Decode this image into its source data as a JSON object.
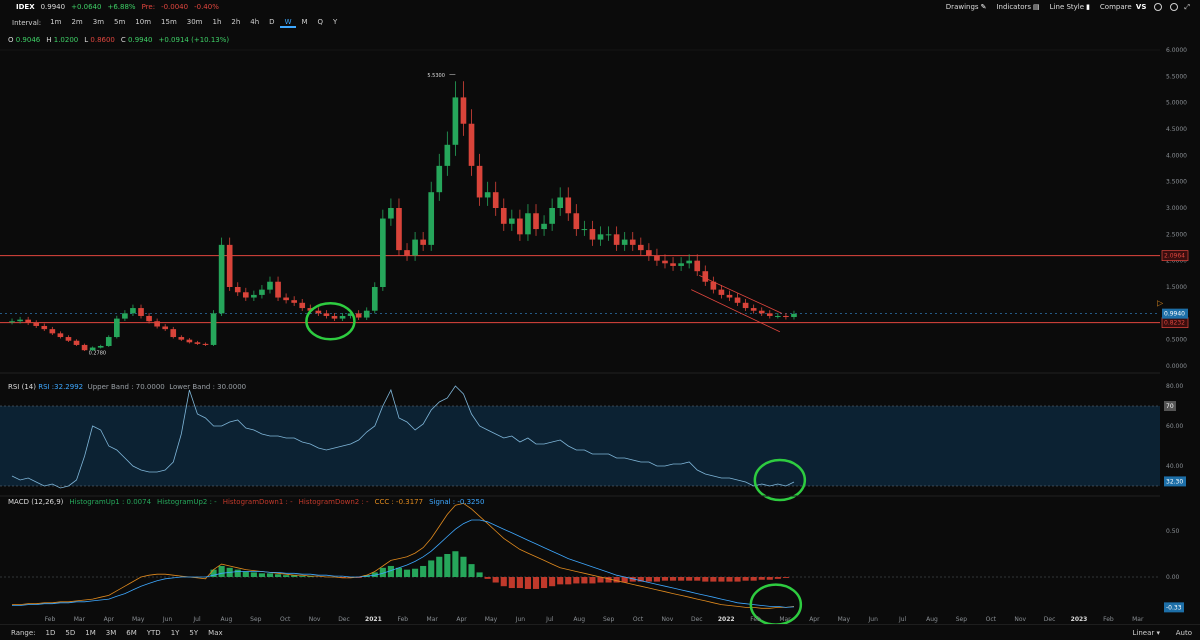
{
  "symbol": "IDEX",
  "price": "0.9940",
  "change": "+0.0640",
  "change_pct": "+6.88%",
  "pre_label": "Pre:",
  "pre_change": "-0.0040",
  "pre_pct": "-0.40%",
  "toolbar": {
    "drawings": "Drawings",
    "indicators": "Indicators",
    "line_style": "Line Style",
    "compare": "Compare",
    "compare_icon": "VS"
  },
  "interval_label": "Interval:",
  "intervals": [
    "1m",
    "2m",
    "3m",
    "5m",
    "10m",
    "15m",
    "30m",
    "1h",
    "2h",
    "4h",
    "D",
    "W",
    "M",
    "Q",
    "Y"
  ],
  "selected_interval": "W",
  "ohlc": {
    "o_label": "O",
    "o": "0.9046",
    "h_label": "H",
    "h": "1.0200",
    "l_label": "L",
    "l": "0.8600",
    "c_label": "C",
    "c": "0.9940",
    "chg": "+0.0914 (+10.13%)"
  },
  "ranges": [
    "Range:",
    "1D",
    "5D",
    "1M",
    "3M",
    "6M",
    "YTD",
    "1Y",
    "5Y",
    "Max"
  ],
  "scale_mode": "Linear",
  "auto_label": "Auto",
  "chart_data": [
    {
      "type": "candlestick",
      "y_ticks": [
        "6.0000",
        "5.5000",
        "5.0000",
        "4.5000",
        "4.0000",
        "3.5000",
        "3.0000",
        "2.5000",
        "2.0000",
        "1.5000",
        "1.0000",
        "0.5000",
        "0.0000"
      ],
      "annotations": {
        "high": "5.5300",
        "low": "0.2780"
      },
      "price_levels": [
        {
          "value": "2.0964",
          "color": "#e0463e"
        },
        {
          "value": "0.8232",
          "color": "#e0463e"
        }
      ],
      "last_price": "0.9940",
      "x_ticks": [
        "Feb",
        "Mar",
        "Apr",
        "May",
        "Jun",
        "Jul",
        "Aug",
        "Sep",
        "Oct",
        "Nov",
        "Dec",
        "2021",
        "Feb",
        "Mar",
        "Apr",
        "May",
        "Jun",
        "Jul",
        "Aug",
        "Sep",
        "Oct",
        "Nov",
        "Dec",
        "2022",
        "Feb",
        "Mar",
        "Apr",
        "May",
        "Jun",
        "Jul",
        "Aug",
        "Sep",
        "Oct",
        "Nov",
        "Dec",
        "2023",
        "Feb",
        "Mar"
      ],
      "closes": [
        0.85,
        0.88,
        0.82,
        0.76,
        0.7,
        0.62,
        0.55,
        0.48,
        0.4,
        0.3,
        0.35,
        0.38,
        0.55,
        0.9,
        1.0,
        1.1,
        0.95,
        0.85,
        0.75,
        0.7,
        0.55,
        0.5,
        0.45,
        0.42,
        0.4,
        1.0,
        2.3,
        1.5,
        1.4,
        1.3,
        1.35,
        1.45,
        1.6,
        1.3,
        1.25,
        1.2,
        1.1,
        1.05,
        1.0,
        0.95,
        0.9,
        0.95,
        1.0,
        0.92,
        1.05,
        1.5,
        2.8,
        3.0,
        2.2,
        2.1,
        2.4,
        2.3,
        3.3,
        3.8,
        4.2,
        5.1,
        4.6,
        3.8,
        3.2,
        3.3,
        3.0,
        2.7,
        2.8,
        2.5,
        2.9,
        2.6,
        2.7,
        3.0,
        3.2,
        2.9,
        2.6,
        2.6,
        2.4,
        2.5,
        2.5,
        2.3,
        2.4,
        2.3,
        2.2,
        2.1,
        2.0,
        1.95,
        1.9,
        1.95,
        2.0,
        1.8,
        1.6,
        1.45,
        1.35,
        1.3,
        1.2,
        1.1,
        1.05,
        1.0,
        0.95,
        0.95,
        0.93,
        0.99
      ]
    },
    {
      "type": "line",
      "name": "RSI (14)",
      "label_prefix": "RSI : ",
      "current": "32.2992",
      "upper_label": "Upper Band : 70.0000",
      "lower_label": "Lower Band : 30.0000",
      "upper": 70,
      "lower": 30,
      "y_ticks": [
        "80.00",
        "60.00",
        "40.00"
      ],
      "badges": [
        "70",
        "32.30"
      ],
      "values": [
        35,
        33,
        34,
        32,
        30,
        31,
        29,
        30,
        33,
        45,
        60,
        58,
        50,
        48,
        44,
        40,
        38,
        37,
        37,
        38,
        42,
        56,
        78,
        66,
        64,
        60,
        60,
        62,
        63,
        59,
        58,
        56,
        55,
        55,
        54,
        54,
        52,
        51,
        49,
        48,
        49,
        50,
        51,
        53,
        57,
        60,
        70,
        78,
        64,
        62,
        58,
        61,
        68,
        72,
        74,
        80,
        76,
        66,
        60,
        58,
        56,
        54,
        55,
        52,
        54,
        51,
        51,
        52,
        53,
        50,
        48,
        48,
        46,
        46,
        46,
        44,
        44,
        43,
        42,
        42,
        40,
        40,
        41,
        41,
        42,
        38,
        36,
        35,
        34,
        34,
        33,
        32,
        30,
        31,
        30,
        31,
        30,
        32
      ]
    },
    {
      "type": "bar",
      "name": "MACD (12,26,9)",
      "legend": [
        {
          "label": "HistogramUp1 : 0.0074",
          "color": "#26a65b"
        },
        {
          "label": "HistogramUp2 : -",
          "color": "#26a65b"
        },
        {
          "label": "HistogramDown1 : -",
          "color": "#c0392b"
        },
        {
          "label": "HistogramDown2 : -",
          "color": "#c0392b"
        },
        {
          "label": "CCC : -0.3177",
          "color": "#e08a1e"
        },
        {
          "label": "Signal : -0.3250",
          "color": "#3ea8ff"
        }
      ],
      "y_ticks": [
        "0.50",
        "0.00"
      ],
      "badge": "-0.33",
      "histogram": [
        0,
        0,
        0,
        0,
        0,
        0,
        0,
        0,
        0,
        0,
        0,
        0,
        0,
        0,
        0,
        0,
        0,
        0,
        0,
        0,
        0,
        0,
        0,
        0,
        0,
        0.08,
        0.12,
        0.1,
        0.08,
        0.06,
        0.05,
        0.04,
        0.04,
        0.03,
        0.02,
        0.02,
        0.01,
        0.01,
        0,
        0,
        0,
        -0.01,
        -0.01,
        -0.01,
        0.02,
        0.05,
        0.1,
        0.12,
        0.1,
        0.08,
        0.09,
        0.12,
        0.18,
        0.22,
        0.25,
        0.28,
        0.22,
        0.14,
        0.05,
        -0.02,
        -0.06,
        -0.1,
        -0.12,
        -0.12,
        -0.13,
        -0.13,
        -0.12,
        -0.1,
        -0.08,
        -0.08,
        -0.07,
        -0.07,
        -0.07,
        -0.06,
        -0.06,
        -0.06,
        -0.06,
        -0.05,
        -0.05,
        -0.05,
        -0.05,
        -0.04,
        -0.04,
        -0.04,
        -0.04,
        -0.04,
        -0.05,
        -0.05,
        -0.05,
        -0.05,
        -0.05,
        -0.04,
        -0.04,
        -0.03,
        -0.03,
        -0.02,
        -0.01,
        0
      ],
      "macd": [
        -0.3,
        -0.3,
        -0.29,
        -0.29,
        -0.28,
        -0.28,
        -0.27,
        -0.27,
        -0.26,
        -0.25,
        -0.24,
        -0.22,
        -0.2,
        -0.15,
        -0.1,
        -0.05,
        0,
        0.02,
        0.03,
        0.03,
        0.02,
        0.01,
        0,
        -0.01,
        -0.02,
        0.08,
        0.14,
        0.12,
        0.1,
        0.08,
        0.07,
        0.06,
        0.05,
        0.04,
        0.03,
        0.02,
        0.02,
        0.01,
        0.01,
        0,
        0,
        -0.01,
        -0.01,
        0,
        0.02,
        0.06,
        0.12,
        0.18,
        0.2,
        0.22,
        0.26,
        0.32,
        0.42,
        0.55,
        0.68,
        0.78,
        0.8,
        0.74,
        0.66,
        0.58,
        0.5,
        0.42,
        0.36,
        0.3,
        0.26,
        0.22,
        0.18,
        0.14,
        0.1,
        0.08,
        0.06,
        0.04,
        0.02,
        0,
        -0.02,
        -0.04,
        -0.06,
        -0.08,
        -0.1,
        -0.12,
        -0.14,
        -0.16,
        -0.18,
        -0.2,
        -0.22,
        -0.24,
        -0.26,
        -0.28,
        -0.3,
        -0.31,
        -0.32,
        -0.33,
        -0.33,
        -0.34,
        -0.34,
        -0.33,
        -0.33,
        -0.32
      ],
      "signal": [
        -0.31,
        -0.31,
        -0.3,
        -0.3,
        -0.29,
        -0.29,
        -0.28,
        -0.28,
        -0.27,
        -0.27,
        -0.26,
        -0.25,
        -0.24,
        -0.21,
        -0.18,
        -0.14,
        -0.1,
        -0.07,
        -0.04,
        -0.02,
        -0.01,
        0,
        0,
        0,
        0,
        0.02,
        0.04,
        0.05,
        0.06,
        0.06,
        0.06,
        0.06,
        0.05,
        0.05,
        0.04,
        0.04,
        0.03,
        0.03,
        0.02,
        0.02,
        0.01,
        0.01,
        0,
        0,
        0.01,
        0.02,
        0.04,
        0.07,
        0.1,
        0.13,
        0.17,
        0.22,
        0.28,
        0.36,
        0.44,
        0.52,
        0.58,
        0.62,
        0.62,
        0.6,
        0.56,
        0.52,
        0.48,
        0.44,
        0.4,
        0.36,
        0.32,
        0.28,
        0.24,
        0.2,
        0.17,
        0.14,
        0.11,
        0.08,
        0.05,
        0.02,
        0,
        -0.02,
        -0.04,
        -0.06,
        -0.08,
        -0.1,
        -0.12,
        -0.14,
        -0.16,
        -0.18,
        -0.2,
        -0.22,
        -0.24,
        -0.26,
        -0.28,
        -0.29,
        -0.3,
        -0.31,
        -0.32,
        -0.32,
        -0.33,
        -0.325
      ]
    }
  ]
}
